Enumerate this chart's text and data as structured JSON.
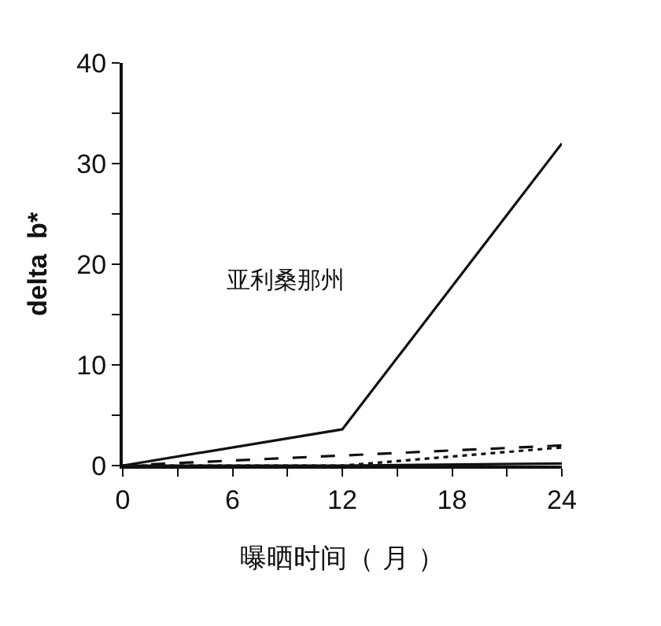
{
  "chart_data": {
    "type": "line",
    "xlabel": "曝晒时间（ 月 ）",
    "ylabel": "delta  b*",
    "annotations": [
      "亚利桑那州"
    ],
    "x": [
      0,
      12,
      24
    ],
    "series": [
      {
        "color": "#111111",
        "line_style": "solid",
        "values": [
          0,
          3.6,
          32
        ]
      },
      {
        "color": "#111111",
        "line_style": "dashed",
        "values": [
          0,
          1,
          2
        ]
      },
      {
        "color": "#111111",
        "line_style": "dotted",
        "values": [
          0,
          0,
          1.8
        ]
      },
      {
        "color": "#111111",
        "line_style": "solid",
        "values": [
          0,
          0,
          0.2
        ]
      }
    ],
    "xlim": [
      0,
      24
    ],
    "xticks": [
      0,
      {
        "value": 3,
        "label": null
      },
      6,
      {
        "value": 9,
        "label": null
      },
      12,
      {
        "value": 15,
        "label": null
      },
      18,
      {
        "value": 21,
        "label": null
      },
      24
    ],
    "ylim": [
      0,
      40
    ],
    "yticks": [
      0,
      {
        "value": 5,
        "label": null
      },
      10,
      {
        "value": 15,
        "label": null
      },
      20,
      {
        "value": 25,
        "label": null
      },
      30,
      {
        "value": 35,
        "label": null
      },
      40
    ],
    "grid": false,
    "marker": "none"
  }
}
